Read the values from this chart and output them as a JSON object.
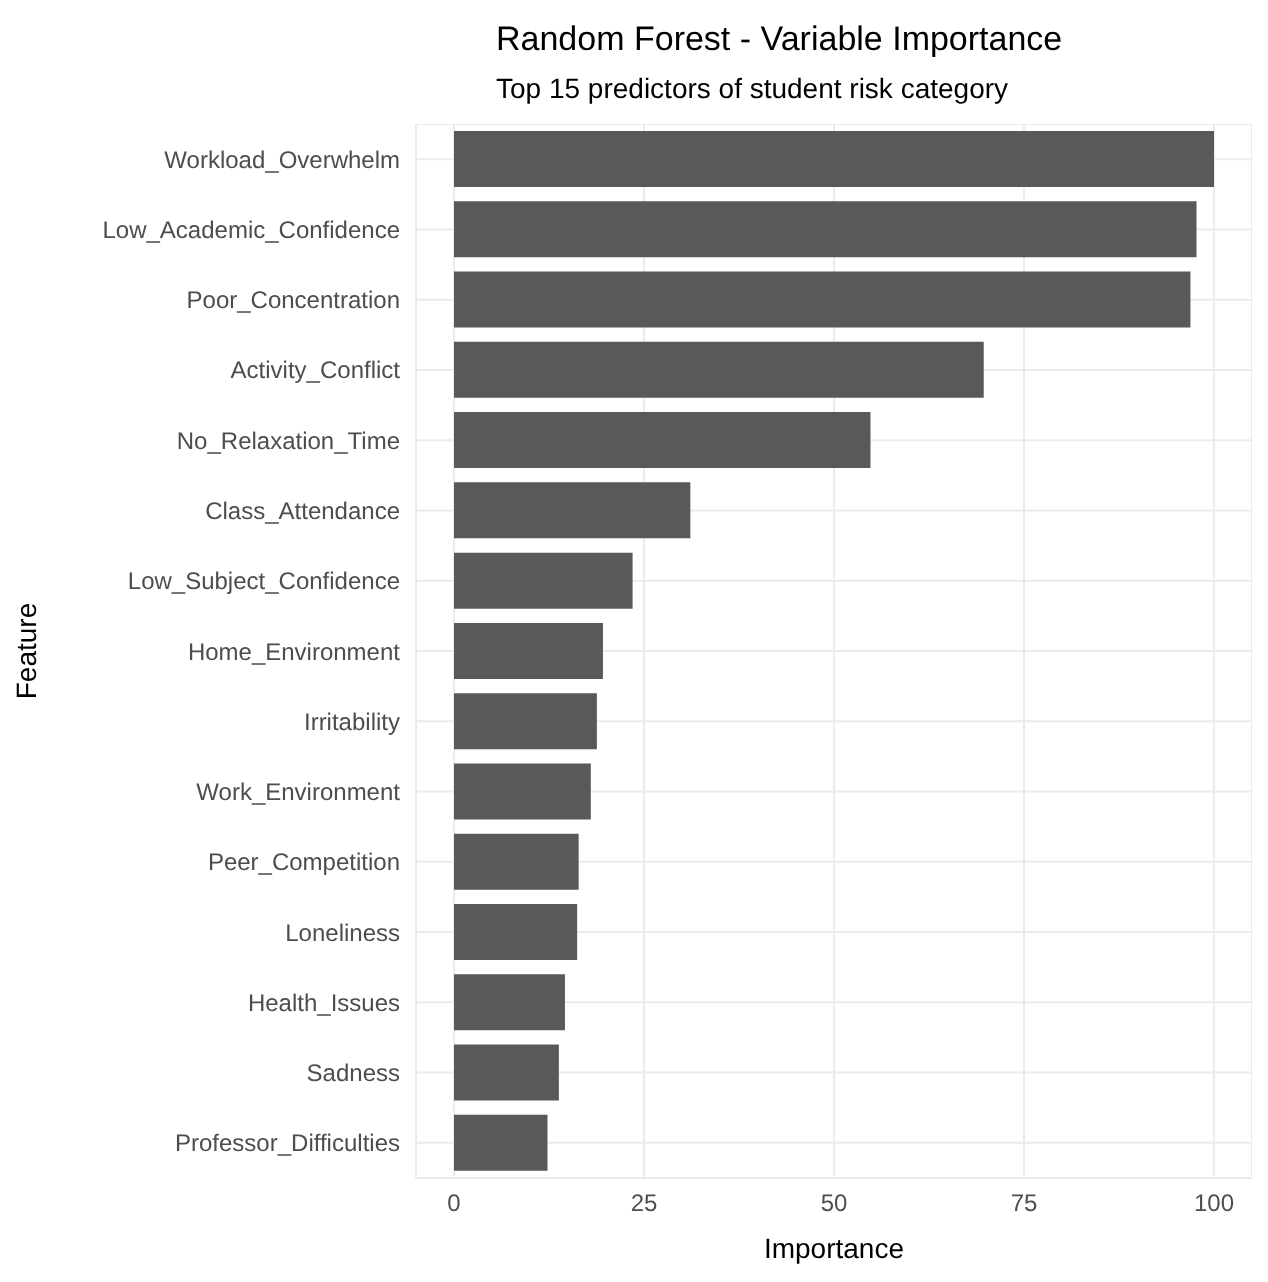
{
  "chart_data": {
    "type": "bar",
    "orientation": "horizontal",
    "title": "Random Forest - Variable Importance",
    "subtitle": "Top 15 predictors of student risk category",
    "xlabel": "Importance",
    "ylabel": "Feature",
    "categories": [
      "Workload_Overwhelm",
      "Low_Academic_Confidence",
      "Poor_Concentration",
      "Activity_Conflict",
      "No_Relaxation_Time",
      "Class_Attendance",
      "Low_Subject_Confidence",
      "Home_Environment",
      "Irritability",
      "Work_Environment",
      "Peer_Competition",
      "Loneliness",
      "Health_Issues",
      "Sadness",
      "Professor_Difficulties"
    ],
    "values": [
      100,
      97.7,
      96.9,
      69.7,
      54.8,
      31.1,
      23.5,
      19.6,
      18.8,
      18.0,
      16.4,
      16.2,
      14.6,
      13.8,
      12.3
    ],
    "color": "#595959",
    "xlim": [
      -5,
      105
    ],
    "xticks": [
      0,
      25,
      50,
      75,
      100
    ],
    "grid": true,
    "legend": false
  }
}
